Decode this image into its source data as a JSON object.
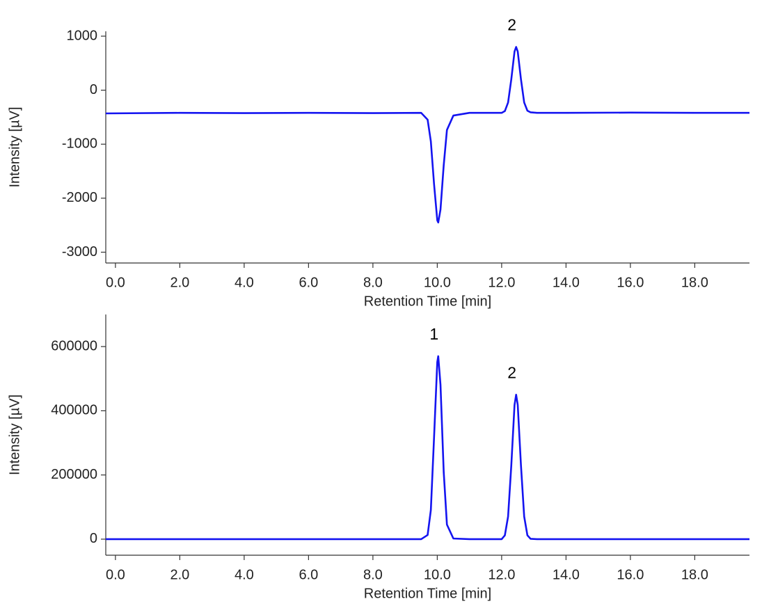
{
  "chart_data": [
    {
      "type": "line",
      "x_label": "Retention Time [min]",
      "y_label": "Intensity [µV]",
      "x": [
        -0.3,
        2,
        4,
        6,
        8,
        9.5,
        9.7,
        9.8,
        9.9,
        10.0,
        10.03,
        10.1,
        10.2,
        10.3,
        10.5,
        11,
        12.0,
        12.1,
        12.2,
        12.3,
        12.4,
        12.45,
        12.5,
        12.6,
        12.7,
        12.8,
        12.9,
        13.1,
        14,
        16,
        18,
        19.7
      ],
      "series": [
        {
          "color": "#1414f0",
          "values": [
            -430,
            -420,
            -425,
            -420,
            -425,
            -420,
            -546,
            -948,
            -1740,
            -2410,
            -2450,
            -2210,
            -1390,
            -737,
            -470,
            -420,
            -420,
            -387,
            -228,
            202,
            715,
            800,
            715,
            202,
            -228,
            -380,
            -410,
            -420,
            -420,
            -415,
            -420,
            -420
          ]
        }
      ],
      "annotations": [
        {
          "text": "2",
          "x": 12.45
        }
      ],
      "xlim": [
        -0.3,
        19.7
      ],
      "xticks": [
        {
          "value": 0,
          "label": "0.0"
        },
        {
          "value": 2,
          "label": "2.0"
        },
        {
          "value": 4,
          "label": "4.0"
        },
        {
          "value": 6,
          "label": "6.0"
        },
        {
          "value": 8,
          "label": "8.0"
        },
        {
          "value": 10,
          "label": "10.0"
        },
        {
          "value": 12,
          "label": "12.0"
        },
        {
          "value": 14,
          "label": "14.0"
        },
        {
          "value": 16,
          "label": "16.0"
        },
        {
          "value": 18,
          "label": "18.0"
        }
      ],
      "ylim": [
        -3200,
        1090
      ],
      "yticks": [
        -3000,
        -2000,
        -1000,
        0,
        1000
      ]
    },
    {
      "type": "line",
      "x_label": "Retention Time [min]",
      "y_label": "Intensity [µV]",
      "x": [
        -0.3,
        2,
        4,
        6,
        8,
        9.5,
        9.7,
        9.8,
        9.9,
        10.0,
        10.03,
        10.1,
        10.2,
        10.3,
        10.5,
        11,
        12.0,
        12.1,
        12.2,
        12.3,
        12.4,
        12.45,
        12.5,
        12.6,
        12.7,
        12.8,
        12.9,
        13.1,
        14,
        16,
        18,
        19.7
      ],
      "series": [
        {
          "color": "#1414f0",
          "values": [
            0,
            0,
            0,
            0,
            0,
            0,
            13000,
            90600,
            317000,
            552000,
            570000,
            481000,
            209000,
            45400,
            2000,
            0,
            0,
            12000,
            70600,
            230000,
            418000,
            450000,
            418000,
            230000,
            70600,
            12000,
            1000,
            0,
            0,
            0,
            0,
            0
          ]
        }
      ],
      "annotations": [
        {
          "text": "1",
          "x": 10.03
        },
        {
          "text": "2",
          "x": 12.45
        }
      ],
      "xlim": [
        -0.3,
        19.7
      ],
      "xticks": [
        {
          "value": 0,
          "label": "0.0"
        },
        {
          "value": 2,
          "label": "2.0"
        },
        {
          "value": 4,
          "label": "4.0"
        },
        {
          "value": 6,
          "label": "6.0"
        },
        {
          "value": 8,
          "label": "8.0"
        },
        {
          "value": 10,
          "label": "10.0"
        },
        {
          "value": 12,
          "label": "12.0"
        },
        {
          "value": 14,
          "label": "14.0"
        },
        {
          "value": 16,
          "label": "16.0"
        },
        {
          "value": 18,
          "label": "18.0"
        }
      ],
      "ylim": [
        -50000,
        700000
      ],
      "yticks": [
        0,
        200000,
        400000,
        600000
      ]
    }
  ]
}
